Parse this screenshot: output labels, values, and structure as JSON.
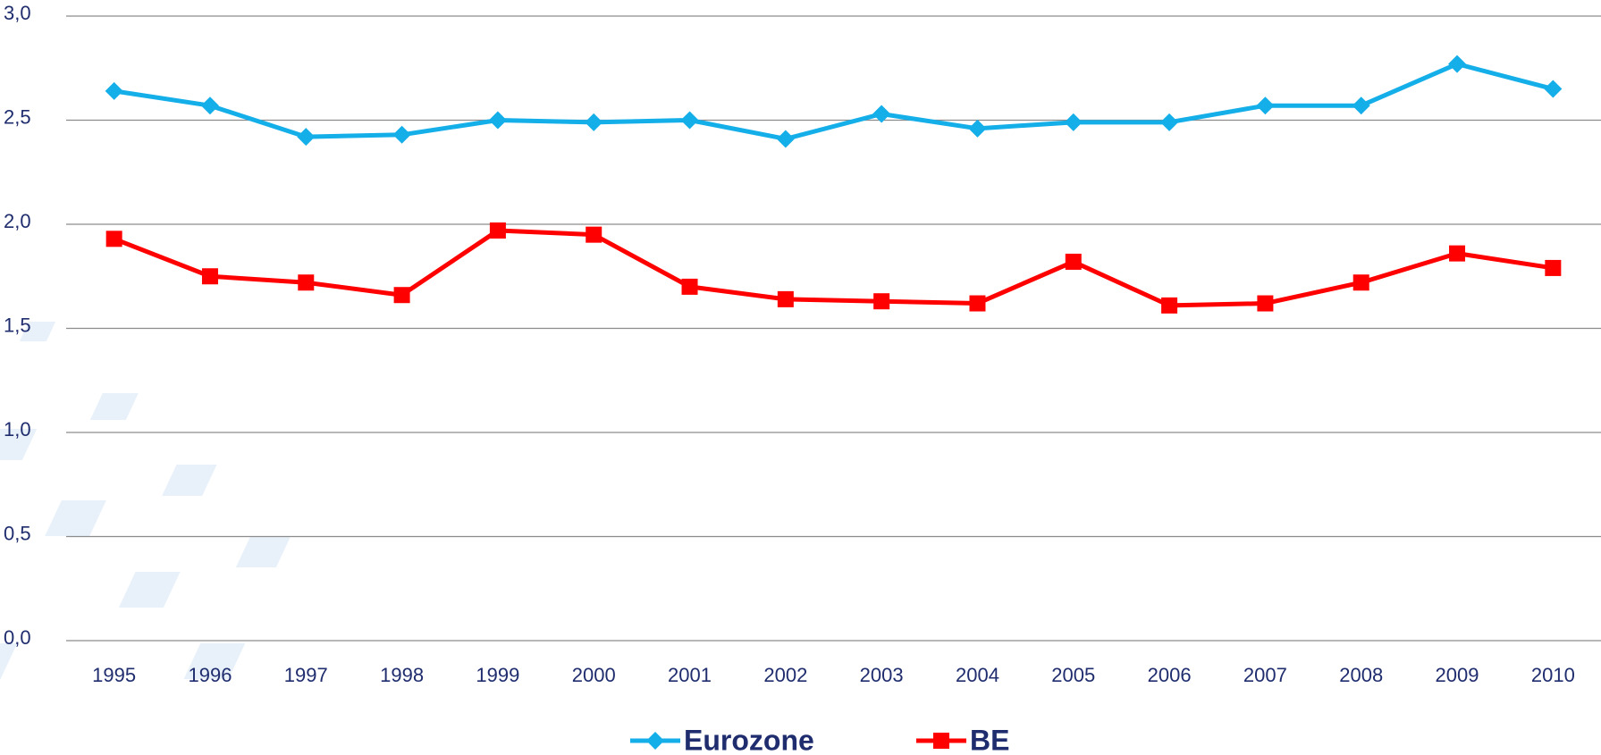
{
  "chart_data": {
    "type": "line",
    "categories": [
      "1995",
      "1996",
      "1997",
      "1998",
      "1999",
      "2000",
      "2001",
      "2002",
      "2003",
      "2004",
      "2005",
      "2006",
      "2007",
      "2008",
      "2009",
      "2010"
    ],
    "series": [
      {
        "name": "Eurozone",
        "color": "#14aee9",
        "marker": "diamond",
        "values": [
          2.64,
          2.57,
          2.42,
          2.43,
          2.5,
          2.49,
          2.5,
          2.41,
          2.53,
          2.46,
          2.49,
          2.49,
          2.57,
          2.57,
          2.77,
          2.65
        ]
      },
      {
        "name": "BE",
        "color": "#ff0000",
        "marker": "square",
        "values": [
          1.93,
          1.75,
          1.72,
          1.66,
          1.97,
          1.95,
          1.7,
          1.64,
          1.63,
          1.62,
          1.82,
          1.61,
          1.62,
          1.72,
          1.86,
          1.79
        ]
      }
    ],
    "ylim": [
      0,
      3
    ],
    "yticks": [
      {
        "value": 0,
        "label": "0,0"
      },
      {
        "value": 0.5,
        "label": "0,5"
      },
      {
        "value": 1,
        "label": "1,0"
      },
      {
        "value": 1.5,
        "label": "1,5"
      },
      {
        "value": 2,
        "label": "2,0"
      },
      {
        "value": 2.5,
        "label": "2,5"
      },
      {
        "value": 3,
        "label": "3,0"
      }
    ],
    "grid": true,
    "legend": "bottom"
  }
}
